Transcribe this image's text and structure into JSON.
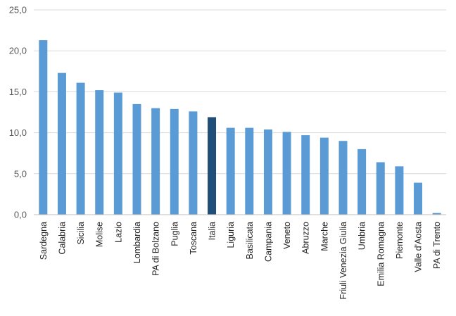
{
  "chart_data": {
    "type": "bar",
    "title": "",
    "xlabel": "",
    "ylabel": "",
    "ylim": [
      0,
      25
    ],
    "y_ticks": [
      0,
      5,
      10,
      15,
      20,
      25
    ],
    "y_tick_labels": [
      "0,0",
      "5,0",
      "10,0",
      "15,0",
      "20,0",
      "25,0"
    ],
    "grid": true,
    "legend": "none",
    "colors": {
      "default": "#5b9bd5",
      "highlight": "#1f4e79"
    },
    "highlight_category": "Italia",
    "categories": [
      "Sardegna",
      "Calabria",
      "Sicilia",
      "Molise",
      "Lazio",
      "Lombardia",
      "PA di Bolzano",
      "Puglia",
      "Toscana",
      "Italia",
      "Liguria",
      "Basilicata",
      "Campania",
      "Veneto",
      "Abruzzo",
      "Marche",
      "Friuli Venezia Giulia",
      "Umbria",
      "Emilia Romagna",
      "Piemonte",
      "Valle d'Aosta",
      "PA di Trento"
    ],
    "values": [
      21.3,
      17.3,
      16.1,
      15.2,
      14.9,
      13.5,
      13.0,
      12.9,
      12.6,
      11.9,
      10.6,
      10.6,
      10.4,
      10.1,
      9.7,
      9.4,
      9.0,
      8.0,
      6.4,
      5.9,
      3.9,
      0.2
    ]
  }
}
